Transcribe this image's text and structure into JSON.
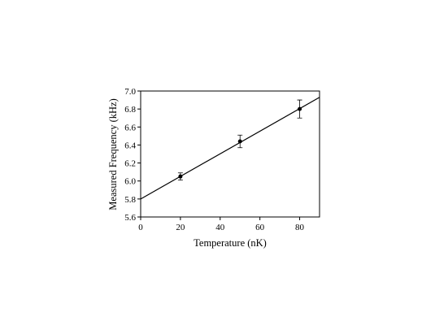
{
  "chart_data": {
    "type": "scatter",
    "x_label": "Temperature (nK)",
    "y_label": "Measured Frequency (kHz)",
    "series": [
      {
        "x": [
          20,
          50,
          80
        ],
        "values": [
          6.05,
          6.44,
          6.8
        ],
        "errors": [
          0.04,
          0.07,
          0.1
        ],
        "color": "#000000"
      }
    ],
    "fit": {
      "x": [
        0,
        90
      ],
      "values": [
        5.8,
        6.93
      ],
      "color": "#000000"
    },
    "xlim": [
      0,
      90
    ],
    "xticks": [
      0,
      20,
      40,
      60,
      80
    ],
    "ylim": [
      5.6,
      7.0
    ],
    "yticks": [
      5.6,
      5.8,
      {
        "value": 6,
        "label": "6.0"
      },
      6.2,
      6.4,
      6.6,
      6.8,
      {
        "value": 7,
        "label": "7.0"
      }
    ]
  }
}
